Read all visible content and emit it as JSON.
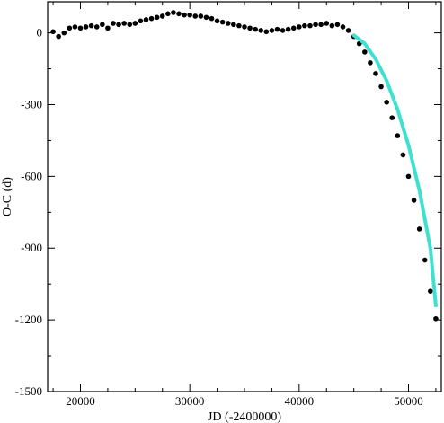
{
  "chart_data": {
    "type": "scatter",
    "xlabel": "JD (-2400000)",
    "ylabel": "O-C (d)",
    "xlim": [
      17000,
      53000
    ],
    "ylim": [
      -1500,
      130
    ],
    "x_ticks": [
      20000,
      30000,
      40000,
      50000
    ],
    "y_ticks": [
      0,
      -300,
      -600,
      -900,
      -1200,
      -1500
    ],
    "grid": false,
    "legend": "none",
    "colors": {
      "points": "#000000",
      "fit": "#40e0d0",
      "axes": "#000000"
    },
    "series": [
      {
        "kind": "observations",
        "x": [
          17500,
          18000,
          18500,
          19000,
          19500,
          20000,
          20500,
          21000,
          21500,
          22000,
          22500,
          23000,
          23500,
          24000,
          24500,
          25000,
          25500,
          26000,
          26500,
          27000,
          27500,
          28000,
          28500,
          29000,
          29500,
          30000,
          30500,
          31000,
          31500,
          32000,
          32500,
          33000,
          33500,
          34000,
          34500,
          35000,
          35500,
          36000,
          36500,
          37000,
          37500,
          38000,
          38500,
          39000,
          39500,
          40000,
          40500,
          41000,
          41500,
          42000,
          42500,
          43000,
          43500,
          44000,
          44500,
          45000,
          45500,
          46000,
          46500,
          47000,
          47500,
          48000,
          48500,
          49000,
          49500,
          50000,
          50500,
          51000,
          51500,
          52000,
          52500
        ],
        "y": [
          5,
          -15,
          0,
          20,
          25,
          20,
          25,
          30,
          25,
          35,
          20,
          40,
          35,
          40,
          35,
          40,
          50,
          55,
          60,
          65,
          70,
          80,
          85,
          80,
          75,
          75,
          70,
          70,
          65,
          60,
          50,
          45,
          40,
          35,
          30,
          25,
          20,
          15,
          10,
          5,
          10,
          15,
          10,
          15,
          20,
          25,
          30,
          30,
          35,
          35,
          40,
          30,
          35,
          25,
          10,
          -15,
          -45,
          -80,
          -125,
          -170,
          -225,
          -290,
          -355,
          -430,
          -510,
          -600,
          -700,
          -820,
          -950,
          -1080,
          -1195
        ]
      },
      {
        "kind": "fit",
        "x": [
          45000,
          46000,
          47000,
          48000,
          49000,
          50000,
          51000,
          52000,
          52500
        ],
        "y": [
          -10,
          -45,
          -110,
          -200,
          -320,
          -470,
          -660,
          -900,
          -1140
        ]
      }
    ]
  }
}
